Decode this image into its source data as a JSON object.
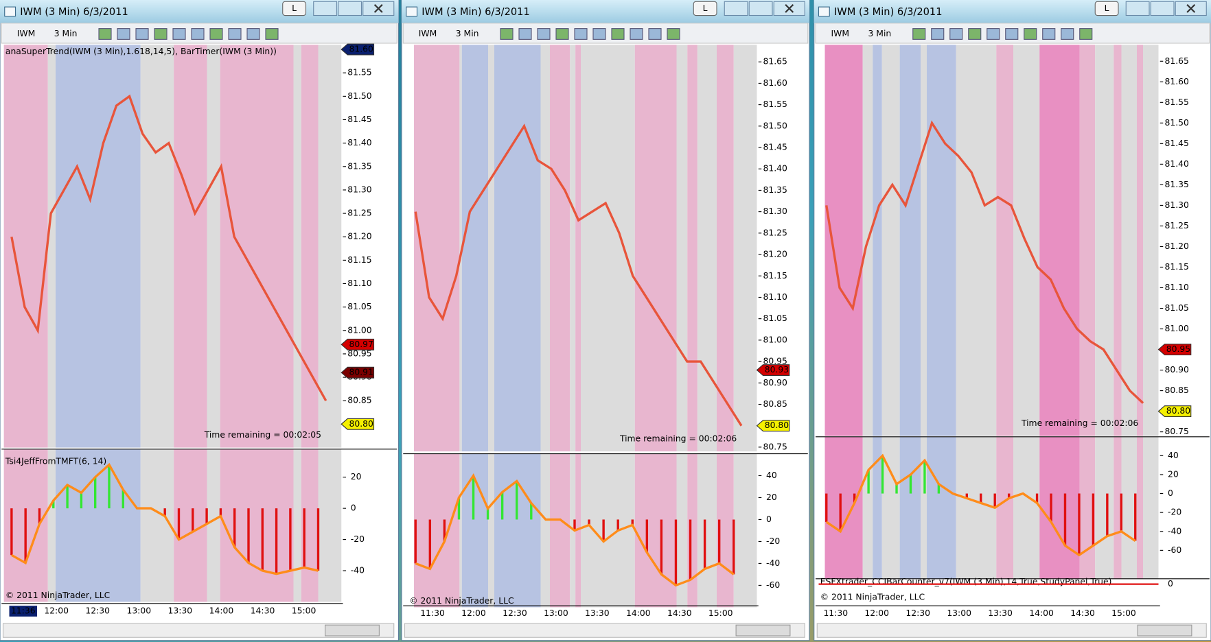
{
  "windows": [
    {
      "title": "IWM (3 Min)  6/3/2011",
      "button": "L",
      "symbol": "IWM",
      "interval": "3 Min",
      "indicator_label": "anaSuperTrend(IWM (3 Min),1.618,14,5),  BarTimer(IWM (3 Min))",
      "price": {
        "ylim": [
          80.75,
          81.61
        ],
        "yticks": [
          81.55,
          {
            "value": 81.5,
            "label": "81.50"
          },
          81.45,
          {
            "value": 81.4,
            "label": "81.40"
          },
          81.35,
          {
            "value": 81.3,
            "label": "81.30"
          },
          81.25,
          {
            "value": 81.2,
            "label": "81.20"
          },
          81.15,
          {
            "value": 81.1,
            "label": "81.10"
          },
          81.05,
          {
            "value": 81,
            "label": "81.00"
          },
          80.95,
          {
            "value": 80.9,
            "label": "80.90"
          },
          80.85
        ],
        "tags": [
          {
            "value": 81.6,
            "label": "81.60",
            "color": "#0a1f6e",
            "text_color": "#ffffff"
          },
          {
            "value": 80.97,
            "label": "80.97",
            "color": "#d40000",
            "text_color": "#ffffff"
          },
          {
            "value": 80.91,
            "label": "80.91",
            "color": "#7a0000",
            "text_color": "#ffffff"
          },
          {
            "value": 80.8,
            "label": "80.80",
            "color": "#f5f000",
            "text_color": "#000000"
          }
        ],
        "path": [
          81.2,
          81.05,
          81.0,
          81.25,
          81.3,
          81.35,
          81.28,
          81.4,
          81.48,
          81.5,
          81.42,
          81.38,
          81.4,
          81.33,
          81.25,
          81.3,
          81.35,
          81.2,
          81.15,
          81.1,
          81.05,
          81.0,
          80.95,
          80.9,
          80.85
        ]
      },
      "timer": "Time remaining = 00:02:05",
      "osc": {
        "label": "Tsi4JeffFromTMFT(6, 14)",
        "ylim": [
          -60,
          38
        ],
        "yticks": [
          20,
          0,
          -20,
          -40
        ],
        "path": [
          -30,
          -35,
          -10,
          5,
          15,
          10,
          20,
          28,
          12,
          0,
          0,
          -5,
          -20,
          -15,
          -10,
          -5,
          -25,
          -35,
          -40,
          -42,
          -40,
          -38,
          -40
        ]
      },
      "copyright": "© 2011 NinjaTrader, LLC",
      "time_cursor": "11:36",
      "time_labels": [
        "12:00",
        "12:30",
        "13:00",
        "13:30",
        "14:00",
        "14:30",
        "15:00"
      ]
    },
    {
      "title": "IWM (3 Min)  6/3/2011",
      "button": "L",
      "symbol": "IWM",
      "interval": "3 Min",
      "price": {
        "ylim": [
          80.74,
          81.69
        ],
        "yticks": [
          81.65,
          {
            "value": 81.6,
            "label": "81.60"
          },
          81.55,
          {
            "value": 81.5,
            "label": "81.50"
          },
          81.45,
          {
            "value": 81.4,
            "label": "81.40"
          },
          81.35,
          {
            "value": 81.3,
            "label": "81.30"
          },
          81.25,
          {
            "value": 81.2,
            "label": "81.20"
          },
          81.15,
          {
            "value": 81.1,
            "label": "81.10"
          },
          81.05,
          {
            "value": 81,
            "label": "81.00"
          },
          80.95,
          {
            "value": 80.9,
            "label": "80.90"
          },
          80.85,
          {
            "value": 80.8,
            "label": "80.80"
          },
          80.75
        ],
        "tags": [
          {
            "value": 80.93,
            "label": "80.93",
            "color": "#d40000",
            "text_color": "#ffffff"
          },
          {
            "value": 80.8,
            "label": "80.80",
            "color": "#f5f000",
            "text_color": "#000000"
          }
        ],
        "path": [
          81.3,
          81.1,
          81.05,
          81.15,
          81.3,
          81.35,
          81.4,
          81.45,
          81.5,
          81.42,
          81.4,
          81.35,
          81.28,
          81.3,
          81.32,
          81.25,
          81.15,
          81.1,
          81.05,
          81.0,
          80.95,
          80.95,
          80.9,
          80.85,
          80.8
        ]
      },
      "timer": "Time remaining = 00:02:06",
      "osc": {
        "ylim": [
          -80,
          60
        ],
        "yticks": [
          40,
          20,
          0,
          -20,
          -40,
          -60
        ],
        "path": [
          -40,
          -45,
          -20,
          20,
          40,
          10,
          25,
          35,
          15,
          0,
          0,
          -10,
          -5,
          -20,
          -10,
          -5,
          -30,
          -50,
          -60,
          -55,
          -45,
          -40,
          -50
        ]
      },
      "copyright": "© 2011 NinjaTrader, LLC",
      "time_labels": [
        "11:30",
        "12:00",
        "12:30",
        "13:00",
        "13:30",
        "14:00",
        "14:30",
        "15:00"
      ]
    },
    {
      "title": "IWM (3 Min)  6/3/2011",
      "button": "L",
      "symbol": "IWM",
      "interval": "3 Min",
      "price": {
        "ylim": [
          80.74,
          81.69
        ],
        "yticks": [
          81.65,
          {
            "value": 81.6,
            "label": "81.60"
          },
          81.55,
          {
            "value": 81.5,
            "label": "81.50"
          },
          81.45,
          {
            "value": 81.4,
            "label": "81.40"
          },
          81.35,
          {
            "value": 81.3,
            "label": "81.30"
          },
          81.25,
          {
            "value": 81.2,
            "label": "81.20"
          },
          81.15,
          {
            "value": 81.1,
            "label": "81.10"
          },
          81.05,
          {
            "value": 81,
            "label": "81.00"
          },
          80.95,
          {
            "value": 80.9,
            "label": "80.90"
          },
          80.85,
          {
            "value": 80.8,
            "label": "80.80"
          },
          80.75
        ],
        "tags": [
          {
            "value": 80.95,
            "label": "80.95",
            "color": "#d40000",
            "text_color": "#ffffff"
          },
          {
            "value": 80.8,
            "label": "80.80",
            "color": "#f5f000",
            "text_color": "#000000"
          }
        ],
        "path": [
          81.3,
          81.1,
          81.05,
          81.2,
          81.3,
          81.35,
          81.3,
          81.4,
          81.5,
          81.45,
          81.42,
          81.38,
          81.3,
          81.32,
          81.3,
          81.22,
          81.15,
          81.12,
          81.05,
          81.0,
          80.97,
          80.95,
          80.9,
          80.85,
          80.82
        ]
      },
      "timer": "Time remaining = 00:02:06",
      "osc": {
        "ylim": [
          -90,
          60
        ],
        "yticks": [
          40,
          20,
          0,
          -20,
          -40,
          -60
        ],
        "path": [
          -30,
          -40,
          -10,
          25,
          40,
          10,
          20,
          35,
          10,
          0,
          -5,
          -10,
          -15,
          -5,
          0,
          -10,
          -30,
          -55,
          -65,
          -55,
          -45,
          -40,
          -50
        ]
      },
      "study_label": "ESFXtrader_CCIBarCounter_v7(IWM (3 Min),14,True,StudyPanel,True)",
      "study_yticks": [
        0
      ],
      "copyright": "© 2011 NinjaTrader, LLC",
      "time_labels": [
        "11:30",
        "12:00",
        "12:30",
        "13:00",
        "13:30",
        "14:00",
        "14:30",
        "15:00"
      ]
    }
  ]
}
